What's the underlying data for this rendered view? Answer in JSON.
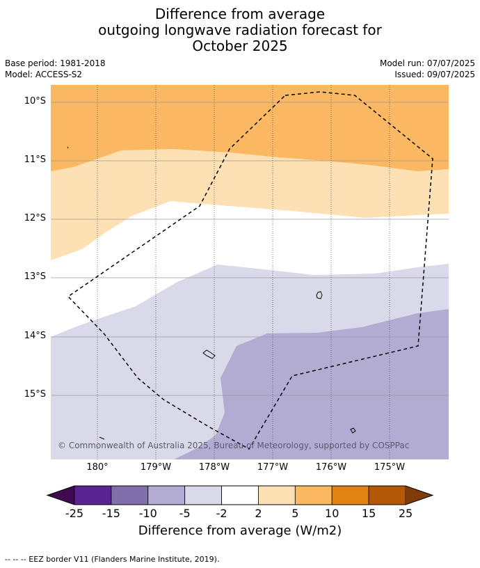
{
  "header": {
    "title_line1": "Difference from average",
    "title_line2": "outgoing longwave radiation forecast for",
    "title_line3": "October 2025",
    "base_period": "Base period: 1981-2018",
    "model": "Model: ACCESS-S2",
    "model_run": "Model run: 07/07/2025",
    "issued": "Issued: 09/07/2025"
  },
  "map": {
    "lat_labels": [
      "10°S",
      "11°S",
      "12°S",
      "13°S",
      "14°S",
      "15°S"
    ],
    "lon_labels": [
      "180°",
      "179°W",
      "178°W",
      "177°W",
      "176°W",
      "175°W"
    ],
    "copyright": "© Commonwealth of Australia 2025, Bureau of Meteorology, supported by COSPPac",
    "colors": {
      "gt5": "#fbb862",
      "2to5": "#fde0b4",
      "neutral": "#ffffff",
      "m5tom2": "#d9d9ea",
      "m10tom5": "#b2acd2",
      "eez_line": "#000000"
    }
  },
  "colorbar": {
    "ticks": [
      "-25",
      "-15",
      "-10",
      "-5",
      "-2",
      "2",
      "5",
      "10",
      "15",
      "25"
    ],
    "colors": [
      "#3f0a52",
      "#5a2590",
      "#7f70ab",
      "#b2acd2",
      "#d9d9ea",
      "#ffffff",
      "#fde0b4",
      "#fbb862",
      "#e08214",
      "#b35806",
      "#7f3b08"
    ],
    "title": "Difference from average (W/m2)"
  },
  "footer": {
    "note": "--  --  -- EEZ border V11 (Flanders Marine Institute, 2019)."
  }
}
